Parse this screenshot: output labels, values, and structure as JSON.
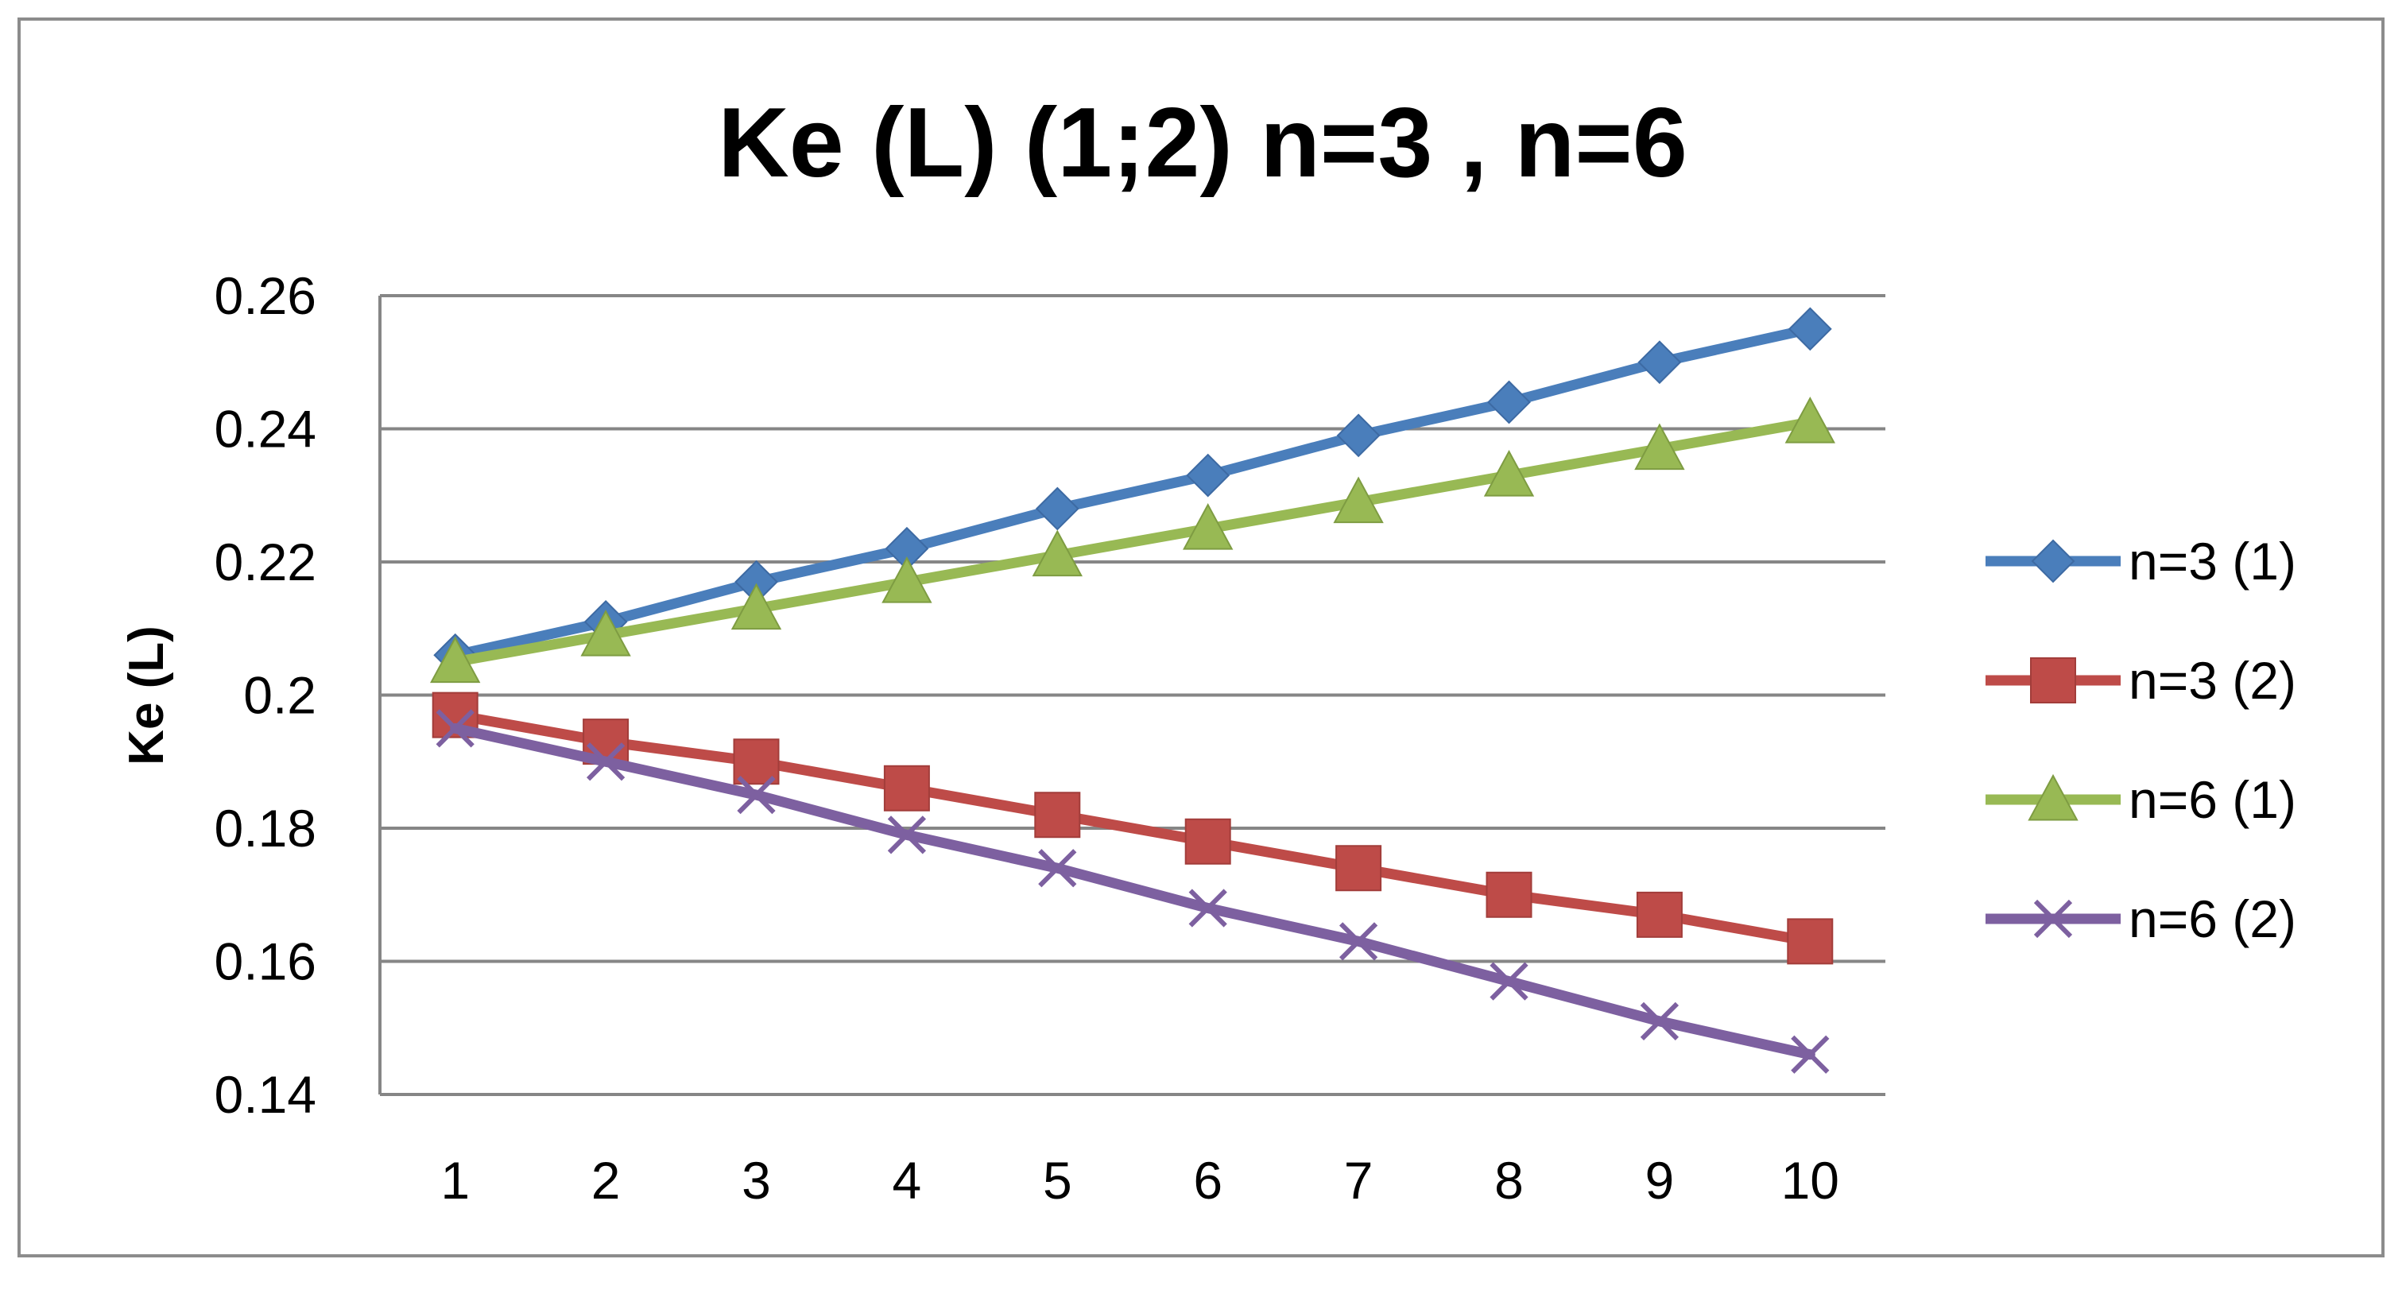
{
  "chart_data": {
    "type": "line",
    "title": "Ke (L) (1;2) n=3 , n=6",
    "xlabel": "",
    "ylabel": "Ke (L)",
    "categories": [
      "1",
      "2",
      "3",
      "4",
      "5",
      "6",
      "7",
      "8",
      "9",
      "10"
    ],
    "ylim": [
      0.14,
      0.26
    ],
    "yticks": [
      "0.14",
      "0.16",
      "0.18",
      "0.2",
      "0.22",
      "0.24",
      "0.26"
    ],
    "ytick_values": [
      0.14,
      0.16,
      0.18,
      0.2,
      0.22,
      0.24,
      0.26
    ],
    "grid": true,
    "legend_position": "right",
    "series": [
      {
        "name": "n=3 (1)",
        "color": "#4a7ebb",
        "marker": "diamond",
        "values": [
          0.206,
          0.211,
          0.217,
          0.222,
          0.228,
          0.233,
          0.239,
          0.244,
          0.25,
          0.255
        ]
      },
      {
        "name": "n=3 (2)",
        "color": "#be4b48",
        "marker": "square",
        "values": [
          0.197,
          0.193,
          0.19,
          0.186,
          0.182,
          0.178,
          0.174,
          0.17,
          0.167,
          0.163
        ]
      },
      {
        "name": "n=6 (1)",
        "color": "#98b954",
        "marker": "triangle",
        "values": [
          0.205,
          0.209,
          0.213,
          0.217,
          0.221,
          0.225,
          0.229,
          0.233,
          0.237,
          0.241
        ]
      },
      {
        "name": "n=6 (2)",
        "color": "#7d60a0",
        "marker": "x",
        "values": [
          0.195,
          0.19,
          0.185,
          0.179,
          0.174,
          0.168,
          0.163,
          0.157,
          0.151,
          0.146
        ]
      }
    ]
  }
}
